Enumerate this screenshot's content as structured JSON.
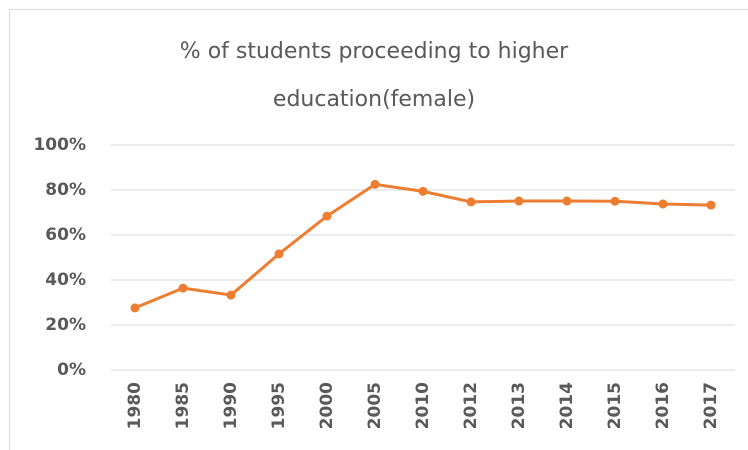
{
  "chart_data": {
    "type": "line",
    "title": "% of students proceeding to higher education(female)",
    "categories": [
      "1980",
      "1985",
      "1990",
      "1995",
      "2000",
      "2005",
      "2010",
      "2012",
      "2013",
      "2014",
      "2015",
      "2016",
      "2017"
    ],
    "series": [
      {
        "name": "female",
        "color": "#ed7d31",
        "values": [
          27.6,
          36.4,
          33.3,
          51.6,
          68.4,
          82.5,
          79.4,
          74.7,
          75.1,
          75.1,
          75.0,
          73.8,
          73.3
        ]
      }
    ],
    "ylim": [
      0,
      100
    ],
    "yticks": [
      {
        "value": 0,
        "label": "0%"
      },
      {
        "value": 20,
        "label": "20%"
      },
      {
        "value": 40,
        "label": "40%"
      },
      {
        "value": 60,
        "label": "60%"
      },
      {
        "value": 80,
        "label": "80%"
      },
      {
        "value": 100,
        "label": "100%"
      }
    ],
    "grid": true
  }
}
